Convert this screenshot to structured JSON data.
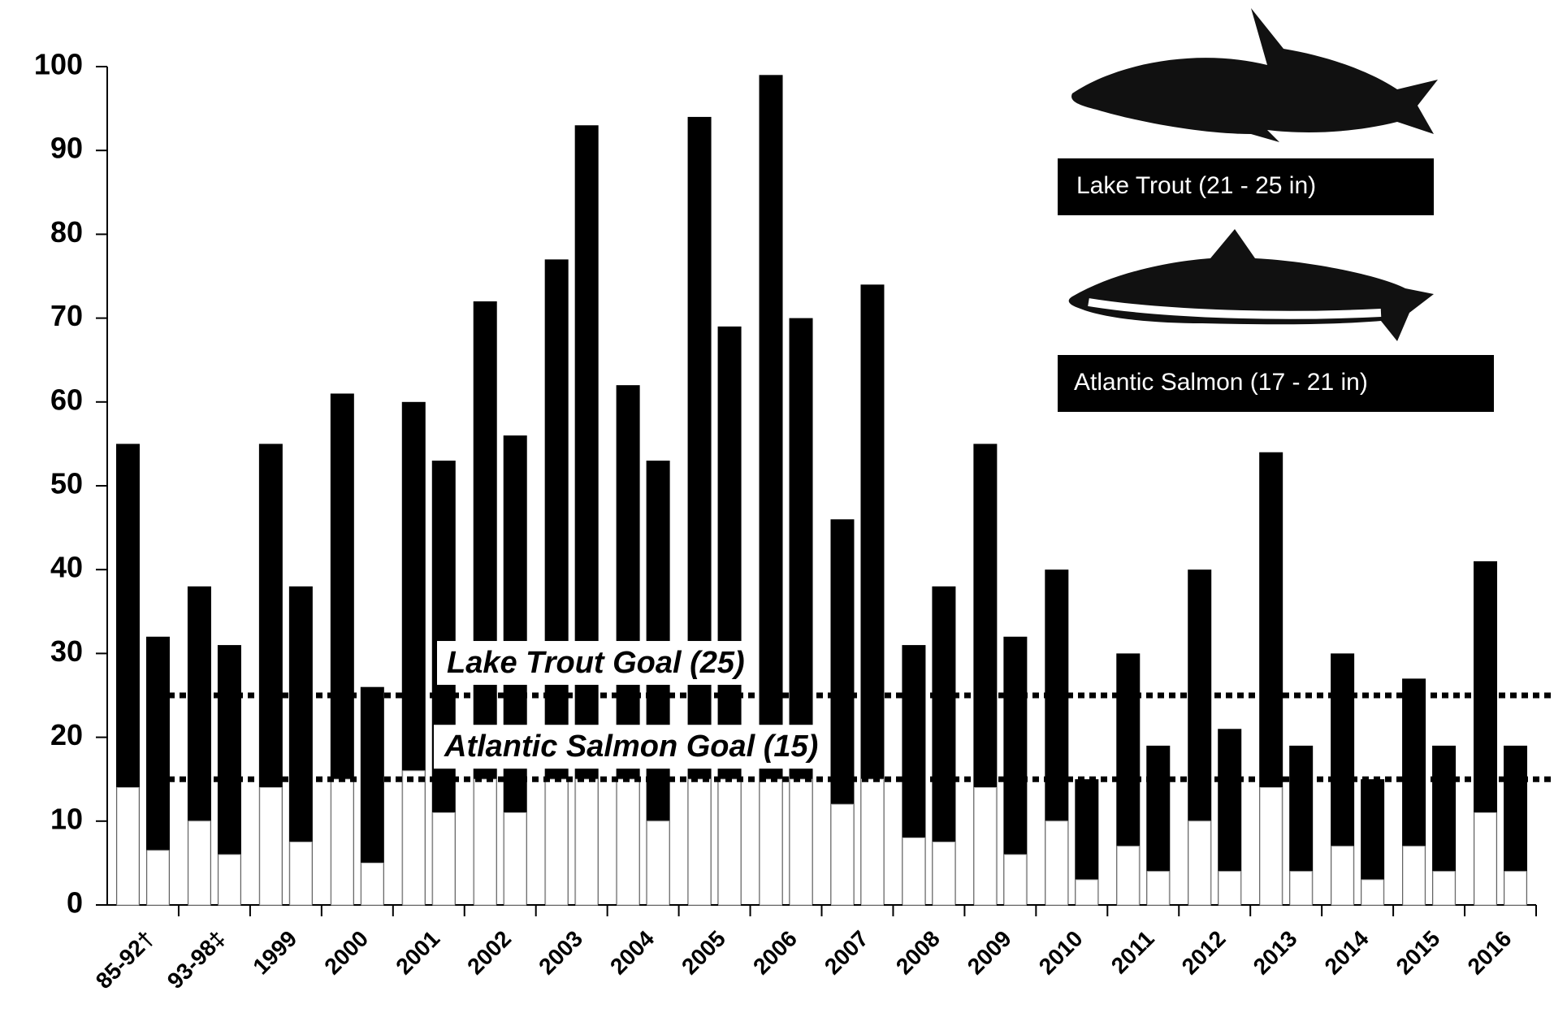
{
  "chart_data": {
    "type": "bar",
    "categories": [
      "85-92†",
      "93-98‡",
      "1999",
      "2000",
      "2001",
      "2002",
      "2003",
      "2004",
      "2005",
      "2006",
      "2007",
      "2008",
      "2009",
      "2010",
      "2011",
      "2012",
      "2013",
      "2014",
      "2015",
      "2016"
    ],
    "series": [
      {
        "name": "Lake Trout  (21 - 25 in)",
        "color": "#000000",
        "base_color": "#ffffff",
        "values": [
          55,
          38,
          55,
          61,
          60,
          72,
          77,
          62,
          94,
          99,
          46,
          31,
          55,
          40,
          30,
          40,
          54,
          30,
          27,
          41
        ],
        "base_values": [
          14,
          10,
          14,
          15,
          16,
          15,
          15,
          15,
          15,
          15,
          12,
          8,
          14,
          10,
          7,
          10,
          14,
          7,
          7,
          11
        ]
      },
      {
        "name": "Atlantic Salmon (17 - 21 in)",
        "color": "#000000",
        "base_color": "#ffffff",
        "values": [
          32,
          31,
          38,
          26,
          53,
          56,
          93,
          53,
          69,
          70,
          74,
          38,
          32,
          15,
          19,
          21,
          19,
          15,
          19,
          19
        ],
        "base_values": [
          6.5,
          6,
          7.5,
          5,
          11,
          11,
          15,
          10,
          15,
          15,
          15,
          7.5,
          6,
          3,
          4,
          4,
          4,
          3,
          4,
          4
        ]
      }
    ],
    "goals": [
      {
        "label": "Lake Trout Goal (25)",
        "value": 25
      },
      {
        "label": "Atlantic Salmon Goal (15)",
        "value": 15
      }
    ],
    "ylim": [
      0,
      100
    ],
    "yticks": [
      0,
      10,
      20,
      30,
      40,
      50,
      60,
      70,
      80,
      90,
      100
    ]
  }
}
